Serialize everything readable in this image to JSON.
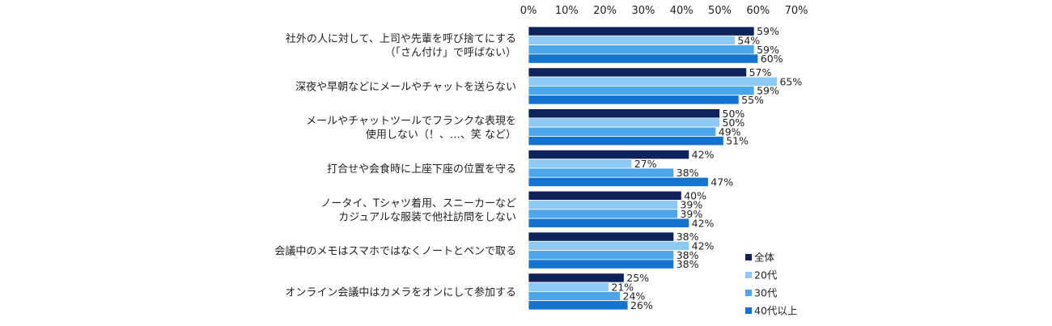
{
  "chart_data": {
    "type": "bar",
    "orientation": "horizontal",
    "value_format": "{v}%",
    "xlim": [
      0,
      70
    ],
    "ticks": [
      0,
      10,
      20,
      30,
      40,
      50,
      60,
      70
    ],
    "tick_labels": [
      "0%",
      "10%",
      "20%",
      "30%",
      "40%",
      "50%",
      "60%",
      "70%"
    ],
    "grid": false,
    "legend_position": "bottom-right",
    "categories": [
      [
        "社外の人に対して、上司や先輩を呼び捨てにする",
        "（「さん付け」で呼ばない）"
      ],
      [
        "深夜や早朝などにメールやチャットを送らない"
      ],
      [
        "メールやチャットツールでフランクな表現を",
        "使用しない（！、…、笑 など）"
      ],
      [
        "打合せや会食時に上座下座の位置を守る"
      ],
      [
        "ノータイ、Tシャツ着用、スニーカーなど",
        "カジュアルな服装で他社訪問をしない"
      ],
      [
        "会議中のメモはスマホではなくノートとペンで取る"
      ],
      [
        "オンライン会議中はカメラをオンにして参加する"
      ]
    ],
    "series": [
      {
        "name": "全体",
        "color": "#0d2359",
        "values": [
          59,
          57,
          50,
          42,
          40,
          38,
          25
        ]
      },
      {
        "name": "20代",
        "color": "#8ec9f5",
        "values": [
          54,
          65,
          50,
          27,
          39,
          42,
          21
        ]
      },
      {
        "name": "30代",
        "color": "#4ba7ea",
        "values": [
          59,
          59,
          49,
          38,
          39,
          38,
          24
        ]
      },
      {
        "name": "40代以上",
        "color": "#1473cc",
        "values": [
          60,
          55,
          51,
          47,
          42,
          38,
          26
        ]
      }
    ]
  }
}
